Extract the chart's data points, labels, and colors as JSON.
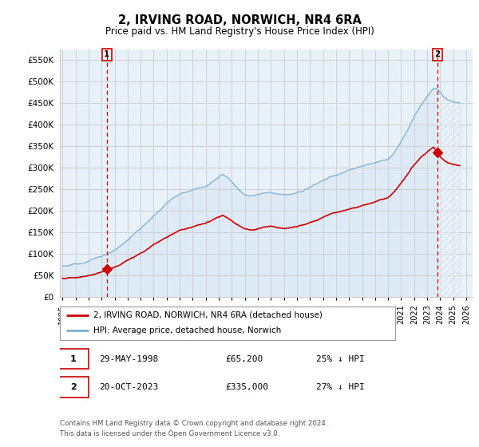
{
  "title": "2, IRVING ROAD, NORWICH, NR4 6RA",
  "subtitle": "Price paid vs. HM Land Registry's House Price Index (HPI)",
  "ylim": [
    0,
    575000
  ],
  "yticks": [
    0,
    50000,
    100000,
    150000,
    200000,
    250000,
    300000,
    350000,
    400000,
    450000,
    500000,
    550000
  ],
  "ytick_labels": [
    "£0",
    "£50K",
    "£100K",
    "£150K",
    "£200K",
    "£250K",
    "£300K",
    "£350K",
    "£400K",
    "£450K",
    "£500K",
    "£550K"
  ],
  "xlim_start": 1994.8,
  "xlim_end": 2026.5,
  "xticks": [
    1995,
    1996,
    1997,
    1998,
    1999,
    2000,
    2001,
    2002,
    2003,
    2004,
    2005,
    2006,
    2007,
    2008,
    2009,
    2010,
    2011,
    2012,
    2013,
    2014,
    2015,
    2016,
    2017,
    2018,
    2019,
    2020,
    2021,
    2022,
    2023,
    2024,
    2025,
    2026
  ],
  "hpi_color": "#7aafd4",
  "hpi_fill_color": "#d6e8f5",
  "price_color": "#cc0000",
  "vline_color": "#cc0000",
  "grid_color": "#cccccc",
  "bg_color": "#e8f0f8",
  "point1_x": 1998.41,
  "point1_y": 65200,
  "point2_x": 2023.79,
  "point2_y": 335000,
  "legend_label1": "2, IRVING ROAD, NORWICH, NR4 6RA (detached house)",
  "legend_label2": "HPI: Average price, detached house, Norwich",
  "table_rows": [
    {
      "num": "1",
      "date": "29-MAY-1998",
      "price": "£65,200",
      "hpi": "25% ↓ HPI"
    },
    {
      "num": "2",
      "date": "20-OCT-2023",
      "price": "£335,000",
      "hpi": "27% ↓ HPI"
    }
  ],
  "footer": "Contains HM Land Registry data © Crown copyright and database right 2024.\nThis data is licensed under the Open Government Licence v3.0.",
  "background_color": "#ffffff"
}
